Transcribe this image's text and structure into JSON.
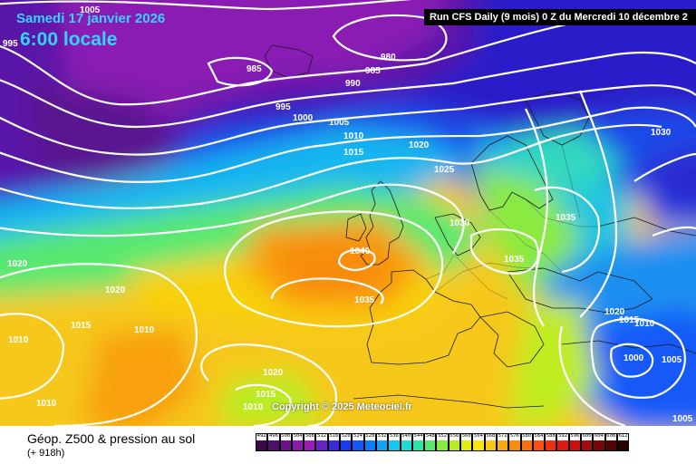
{
  "header": {
    "date_text": "Samedi 17 janvier 2026",
    "time_text": "6:00 locale",
    "run_text": "Run CFS Daily (9 mois) 0 Z du Mercredi 10 décembre 2"
  },
  "footer": {
    "title": "Géop. Z500 & pression au sol",
    "subtitle": "(+ 918h)",
    "copyright": "Copyright © 2025 Meteociel.fr"
  },
  "isobar_labels": [
    {
      "text": "1005"
    },
    {
      "text": "995"
    },
    {
      "text": "985"
    },
    {
      "text": "980"
    },
    {
      "text": "985"
    },
    {
      "text": "990"
    },
    {
      "text": "995"
    },
    {
      "text": "1000"
    },
    {
      "text": "1005"
    },
    {
      "text": "1010"
    },
    {
      "text": "1015"
    },
    {
      "text": "1020"
    },
    {
      "text": "1025"
    },
    {
      "text": "1030"
    },
    {
      "text": "1040"
    },
    {
      "text": "1035"
    },
    {
      "text": "1035"
    },
    {
      "text": "1035"
    },
    {
      "text": "1030"
    },
    {
      "text": "1020"
    },
    {
      "text": "1020"
    },
    {
      "text": "1015"
    },
    {
      "text": "1010"
    },
    {
      "text": "1010"
    },
    {
      "text": "1020"
    },
    {
      "text": "1015"
    },
    {
      "text": "1010"
    },
    {
      "text": "1010"
    },
    {
      "text": "1020"
    },
    {
      "text": "1015"
    },
    {
      "text": "1010"
    },
    {
      "text": "1000"
    },
    {
      "text": "1005"
    },
    {
      "text": "1005"
    }
  ],
  "legend_scale": {
    "values": [
      "492",
      "496",
      "500",
      "504",
      "508",
      "512",
      "516",
      "520",
      "524",
      "528",
      "532",
      "536",
      "540",
      "544",
      "548",
      "552",
      "556",
      "560",
      "564",
      "568",
      "572",
      "576",
      "580",
      "584",
      "588",
      "592",
      "596",
      "600",
      "604",
      "608",
      "612"
    ],
    "colors": [
      "#3a0a4a",
      "#4e0f6a",
      "#6a138a",
      "#8a1aaa",
      "#9c1cb8",
      "#6a22c8",
      "#3a2ad8",
      "#1a3af0",
      "#1258f8",
      "#0e7cf8",
      "#10a4f8",
      "#14c8f0",
      "#20dcd8",
      "#30e4a8",
      "#58e870",
      "#8aea40",
      "#b8ec20",
      "#e0ee10",
      "#f8e410",
      "#f8c810",
      "#f8aa10",
      "#f88c10",
      "#f87010",
      "#f85010",
      "#f03010",
      "#e01a10",
      "#c81010",
      "#a00c0c",
      "#780808",
      "#500404",
      "#280000"
    ]
  }
}
